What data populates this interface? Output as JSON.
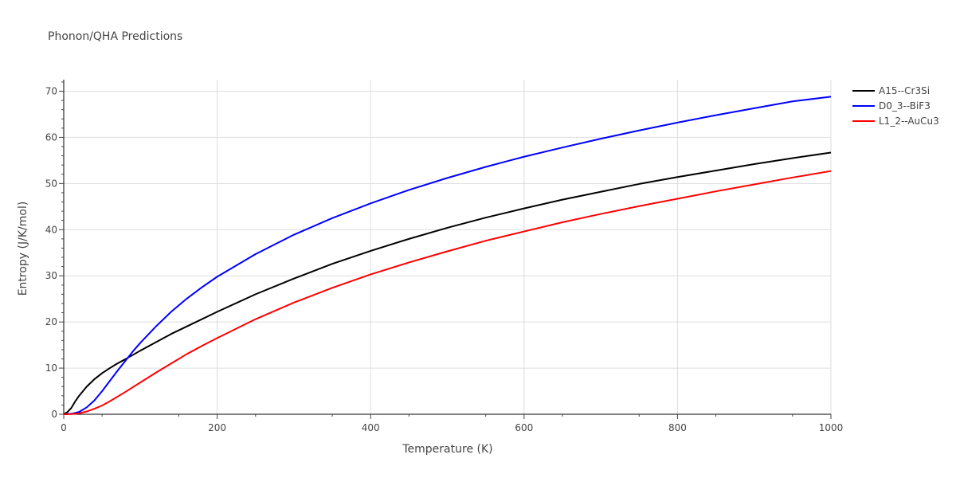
{
  "chart_data": {
    "type": "line",
    "title": "Phonon/QHA Predictions",
    "xlabel": "Temperature (K)",
    "ylabel": "Entropy (J/K/mol)",
    "xlim": [
      0,
      1000
    ],
    "ylim": [
      0,
      72.5
    ],
    "xticks": [
      0,
      200,
      400,
      600,
      800,
      1000
    ],
    "yticks": [
      0,
      10,
      20,
      30,
      40,
      50,
      60,
      70
    ],
    "grid": true,
    "legend_position": "top-right",
    "series": [
      {
        "name": "A15--Cr3Si",
        "color": "#000000",
        "x": [
          0,
          5,
          10,
          15,
          20,
          30,
          40,
          50,
          60,
          70,
          80,
          100,
          120,
          140,
          160,
          200,
          250,
          300,
          350,
          400,
          450,
          500,
          550,
          600,
          650,
          700,
          750,
          800,
          850,
          900,
          950,
          1000
        ],
        "y": [
          0,
          0.5,
          1.4,
          2.8,
          4.0,
          6.0,
          7.6,
          8.9,
          10.0,
          11.0,
          11.9,
          13.8,
          15.6,
          17.4,
          19.0,
          22.2,
          26.0,
          29.4,
          32.6,
          35.4,
          38.0,
          40.4,
          42.6,
          44.6,
          46.5,
          48.2,
          49.9,
          51.4,
          52.8,
          54.2,
          55.5,
          56.7
        ]
      },
      {
        "name": "D0_3--BiF3",
        "color": "#0000ff",
        "x": [
          0,
          10,
          20,
          30,
          40,
          50,
          60,
          70,
          80,
          90,
          100,
          120,
          140,
          160,
          180,
          200,
          250,
          300,
          350,
          400,
          450,
          500,
          550,
          600,
          650,
          700,
          750,
          800,
          850,
          900,
          950,
          1000
        ],
        "y": [
          0,
          0.1,
          0.5,
          1.5,
          3.0,
          5.0,
          7.2,
          9.4,
          11.5,
          13.6,
          15.5,
          19.0,
          22.2,
          25.0,
          27.5,
          29.8,
          34.7,
          38.9,
          42.5,
          45.7,
          48.6,
          51.2,
          53.6,
          55.8,
          57.8,
          59.7,
          61.5,
          63.2,
          64.8,
          66.3,
          67.8,
          68.8
        ]
      },
      {
        "name": "L1_2--AuCu3",
        "color": "#ff0000",
        "x": [
          0,
          10,
          20,
          30,
          40,
          50,
          60,
          80,
          100,
          120,
          140,
          160,
          180,
          200,
          250,
          300,
          350,
          400,
          450,
          500,
          550,
          600,
          650,
          700,
          750,
          800,
          850,
          900,
          950,
          1000
        ],
        "y": [
          0,
          0.05,
          0.2,
          0.6,
          1.2,
          1.9,
          2.8,
          4.8,
          6.9,
          9.0,
          11.0,
          13.0,
          14.8,
          16.5,
          20.6,
          24.2,
          27.4,
          30.3,
          32.9,
          35.3,
          37.6,
          39.6,
          41.6,
          43.4,
          45.1,
          46.7,
          48.3,
          49.8,
          51.3,
          52.7
        ]
      }
    ]
  }
}
